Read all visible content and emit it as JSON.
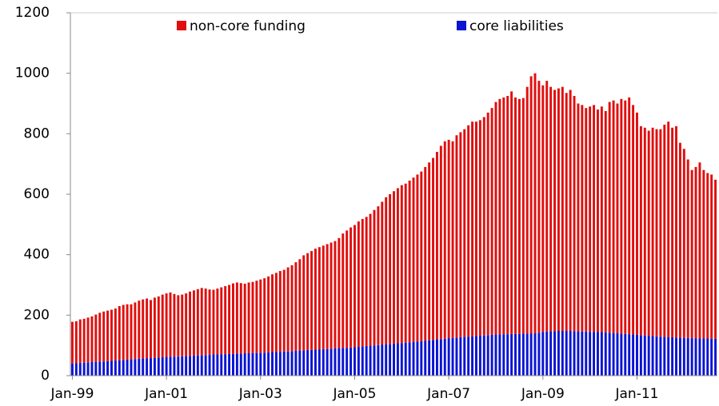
{
  "chart_data": {
    "type": "stacked-bar",
    "categories": [
      "Jan-99",
      null,
      null,
      null,
      null,
      null,
      null,
      null,
      null,
      null,
      null,
      null,
      null,
      null,
      null,
      null,
      null,
      null,
      null,
      null,
      null,
      null,
      null,
      null,
      "Jan-01",
      null,
      null,
      null,
      null,
      null,
      null,
      null,
      null,
      null,
      null,
      null,
      null,
      null,
      null,
      null,
      null,
      null,
      null,
      null,
      null,
      null,
      null,
      null,
      "Jan-03",
      null,
      null,
      null,
      null,
      null,
      null,
      null,
      null,
      null,
      null,
      null,
      null,
      null,
      null,
      null,
      null,
      null,
      null,
      null,
      null,
      null,
      null,
      null,
      "Jan-05",
      null,
      null,
      null,
      null,
      null,
      null,
      null,
      null,
      null,
      null,
      null,
      null,
      null,
      null,
      null,
      null,
      null,
      null,
      null,
      null,
      null,
      null,
      null,
      "Jan-07",
      null,
      null,
      null,
      null,
      null,
      null,
      null,
      null,
      null,
      null,
      null,
      null,
      null,
      null,
      null,
      null,
      null,
      null,
      null,
      null,
      null,
      null,
      null,
      "Jan-09",
      null,
      null,
      null,
      null,
      null,
      null,
      null,
      null,
      null,
      null,
      null,
      null,
      null,
      null,
      null,
      null,
      null,
      null,
      null,
      null,
      null,
      null,
      null,
      "Jan-11",
      null,
      null,
      null,
      null,
      null,
      null,
      null,
      null,
      null,
      null,
      null,
      null,
      null,
      null,
      null,
      null,
      null,
      null,
      null,
      null
    ],
    "series": [
      {
        "name": "core liabilities",
        "color": "#0a14d2",
        "values": [
          40,
          41,
          42,
          43,
          44,
          45,
          46,
          46,
          47,
          48,
          49,
          50,
          51,
          52,
          53,
          54,
          55,
          56,
          57,
          57,
          58,
          59,
          60,
          61,
          62,
          62,
          63,
          63,
          64,
          65,
          65,
          66,
          67,
          68,
          68,
          69,
          70,
          70,
          71,
          71,
          72,
          72,
          73,
          73,
          74,
          74,
          75,
          75,
          76,
          76,
          77,
          78,
          78,
          79,
          80,
          80,
          81,
          82,
          83,
          84,
          85,
          85,
          86,
          87,
          88,
          88,
          89,
          90,
          91,
          92,
          92,
          93,
          94,
          95,
          97,
          98,
          99,
          100,
          101,
          103,
          104,
          105,
          106,
          107,
          108,
          109,
          110,
          112,
          113,
          114,
          116,
          117,
          118,
          120,
          121,
          122,
          124,
          125,
          126,
          127,
          128,
          129,
          130,
          131,
          132,
          133,
          134,
          135,
          136,
          136,
          137,
          137,
          138,
          138,
          138,
          139,
          139,
          140,
          140,
          142,
          145,
          146,
          147,
          147,
          148,
          148,
          148,
          148,
          147,
          147,
          146,
          146,
          145,
          145,
          144,
          144,
          143,
          142,
          141,
          140,
          139,
          138,
          137,
          136,
          135,
          134,
          133,
          132,
          131,
          130,
          129,
          128,
          127,
          127,
          126,
          126,
          125,
          125,
          124,
          124,
          123,
          123,
          123,
          122,
          122
        ]
      },
      {
        "name": "non-core funding",
        "color": "#e00f0f",
        "values": [
          138,
          139,
          144,
          145,
          148,
          151,
          156,
          162,
          165,
          167,
          169,
          172,
          179,
          182,
          183,
          182,
          187,
          192,
          195,
          198,
          192,
          199,
          202,
          207,
          210,
          213,
          207,
          203,
          204,
          207,
          213,
          216,
          219,
          222,
          220,
          216,
          214,
          218,
          221,
          225,
          228,
          233,
          235,
          233,
          230,
          234,
          235,
          239,
          242,
          246,
          251,
          257,
          262,
          267,
          270,
          278,
          284,
          293,
          302,
          314,
          320,
          327,
          334,
          338,
          342,
          347,
          351,
          355,
          364,
          378,
          388,
          397,
          404,
          415,
          421,
          427,
          436,
          448,
          459,
          472,
          486,
          495,
          504,
          513,
          522,
          526,
          535,
          543,
          552,
          561,
          574,
          588,
          602,
          620,
          639,
          653,
          656,
          650,
          669,
          678,
          687,
          699,
          710,
          709,
          713,
          722,
          736,
          750,
          769,
          779,
          783,
          788,
          802,
          782,
          777,
          779,
          816,
          850,
          860,
          833,
          815,
          829,
          808,
          798,
          802,
          807,
          787,
          797,
          778,
          753,
          749,
          739,
          745,
          750,
          736,
          746,
          732,
          763,
          769,
          760,
          776,
          772,
          783,
          759,
          735,
          691,
          687,
          678,
          689,
          685,
          686,
          702,
          713,
          693,
          699,
          644,
          625,
          590,
          556,
          566,
          582,
          557,
          547,
          543,
          526
        ]
      }
    ],
    "ylim": [
      0,
      1200
    ],
    "yticks": [
      0,
      200,
      400,
      600,
      800,
      1000,
      1200
    ],
    "legend": "top",
    "grid": false
  }
}
